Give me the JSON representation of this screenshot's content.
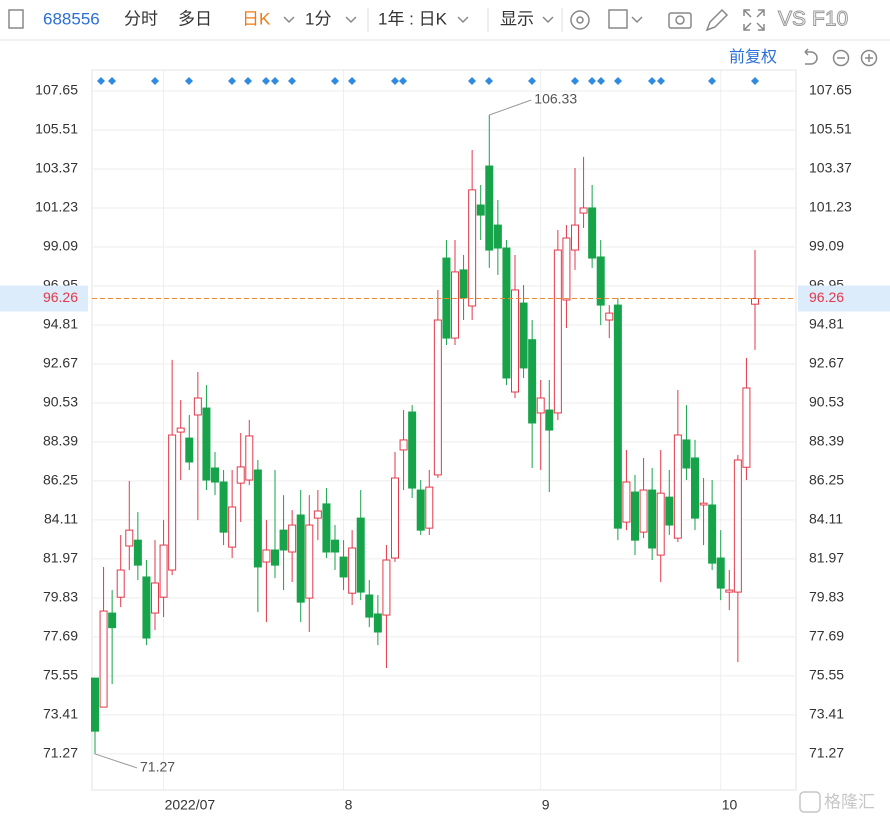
{
  "toolbar": {
    "code": "688556",
    "tabs": [
      "分时",
      "多日",
      "日K",
      "1分"
    ],
    "period": "1年 : 日K",
    "display": "显示",
    "vs": "VS",
    "f10": "F10",
    "adjust": "前复权"
  },
  "chart_data": {
    "type": "candlestick",
    "x": [
      null,
      null,
      null,
      null,
      null,
      null,
      null,
      null,
      "2022/07",
      null,
      null,
      null,
      null,
      null,
      null,
      null,
      null,
      null,
      null,
      null,
      null,
      null,
      null,
      null,
      null,
      null,
      null,
      null,
      null,
      "8",
      null,
      null,
      null,
      null,
      null,
      null,
      null,
      null,
      null,
      null,
      null,
      null,
      null,
      null,
      null,
      null,
      null,
      null,
      null,
      null,
      null,
      null,
      "9",
      null,
      null,
      null,
      null,
      null,
      null,
      null,
      null,
      null,
      null,
      null,
      null,
      null,
      null,
      null,
      null,
      null,
      null,
      null,
      null,
      "10",
      null,
      null,
      null,
      null
    ],
    "open": [
      75.43,
      73.84,
      79.0,
      79.87,
      82.68,
      83.0,
      80.98,
      79.0,
      79.87,
      81.36,
      88.93,
      88.6,
      89.87,
      90.25,
      86.96,
      86.19,
      82.62,
      86.13,
      86.3,
      86.85,
      81.8,
      82.46,
      83.55,
      82.35,
      84.38,
      79.82,
      84.21,
      84.99,
      83.0,
      82.07,
      80.09,
      84.21,
      79.99,
      78.95,
      78.89,
      82.02,
      87.95,
      90.03,
      85.75,
      83.66,
      86.58,
      98.48,
      94.09,
      97.83,
      95.85,
      101.39,
      103.53,
      100.29,
      99.03,
      91.13,
      96.01,
      94.0,
      89.98,
      90.14,
      89.98,
      96.18,
      98.92,
      100.95,
      101.23,
      98.54,
      95.08,
      95.9,
      83.99,
      85.64,
      83.44,
      85.75,
      82.18,
      85.36,
      83.11,
      88.5,
      87.51,
      84.93,
      84.93,
      82.02,
      80.15,
      80.15,
      87.0,
      95.95
    ],
    "high": [
      75.43,
      81.53,
      80.26,
      83.28,
      86.25,
      84.54,
      81.91,
      83.0,
      84.1,
      92.89,
      90.69,
      89.87,
      92.23,
      91.51,
      87.84,
      86.85,
      86.85,
      88.88,
      89.6,
      87.4,
      84.1,
      86.85,
      85.47,
      84.65,
      85.75,
      85.47,
      85.75,
      85.86,
      83.83,
      83.0,
      83.55,
      85.75,
      80.81,
      79.99,
      82.73,
      87.84,
      90.14,
      90.41,
      86.3,
      86.85,
      96.73,
      99.47,
      99.47,
      98.65,
      104.41,
      102.49,
      106.33,
      101.67,
      99.47,
      98.65,
      97.0,
      95.08,
      91.79,
      91.79,
      100.02,
      100.29,
      103.42,
      104.03,
      102.49,
      99.47,
      95.9,
      96.29,
      87.95,
      86.58,
      87.51,
      86.96,
      87.95,
      86.85,
      91.24,
      90.41,
      88.5,
      86.41,
      86.3,
      83.55,
      81.36,
      87.68,
      93.0,
      98.92
    ],
    "low": [
      71.27,
      73.84,
      75.1,
      79.33,
      81.36,
      80.81,
      77.24,
      78.07,
      78.78,
      81.08,
      86.3,
      86.85,
      84.1,
      85.75,
      85.47,
      82.73,
      82.02,
      84.0,
      86.02,
      79.05,
      78.5,
      80.92,
      80.26,
      80.7,
      78.5,
      77.96,
      83.0,
      82.02,
      81.36,
      80.26,
      79.44,
      79.71,
      78.23,
      77.24,
      75.98,
      81.8,
      85.75,
      85.31,
      83.28,
      83.28,
      86.41,
      93.71,
      93.71,
      95.08,
      95.08,
      99.47,
      97.94,
      97.55,
      91.51,
      90.8,
      91.9,
      86.96,
      86.85,
      85.64,
      89.59,
      94.64,
      97.83,
      100.13,
      97.94,
      94.8,
      94.09,
      83.0,
      83.55,
      82.18,
      83.11,
      81.91,
      80.7,
      83.28,
      82.9,
      86.3,
      83.55,
      82.73,
      81.36,
      79.71,
      79.16,
      76.31,
      86.3,
      93.44
    ],
    "close": [
      72.52,
      79.11,
      78.2,
      81.36,
      83.55,
      81.63,
      77.63,
      80.65,
      82.73,
      88.77,
      89.15,
      87.29,
      90.8,
      86.3,
      86.19,
      83.44,
      84.82,
      87.02,
      88.72,
      81.53,
      82.46,
      81.63,
      82.46,
      83.83,
      79.6,
      83.83,
      84.6,
      82.35,
      82.35,
      80.98,
      82.57,
      80.15,
      78.78,
      77.96,
      81.91,
      86.41,
      88.5,
      85.86,
      83.55,
      85.91,
      95.08,
      94.09,
      97.72,
      96.29,
      102.22,
      100.84,
      98.92,
      99.03,
      91.9,
      96.73,
      92.45,
      89.43,
      90.8,
      89.04,
      98.92,
      99.58,
      100.29,
      101.23,
      98.48,
      95.9,
      95.46,
      83.66,
      86.19,
      83.0,
      85.75,
      82.57,
      85.58,
      83.83,
      88.77,
      86.96,
      84.21,
      85.03,
      81.74,
      80.37,
      80.26,
      87.4,
      91.35,
      96.26
    ],
    "up_color": "#e3394a",
    "down_color": "#16a34a",
    "ylim": [
      69.29,
      108.8
    ],
    "yticks": [
      107.65,
      105.51,
      103.37,
      101.23,
      99.09,
      96.95,
      94.81,
      92.67,
      90.53,
      88.39,
      86.25,
      84.11,
      81.97,
      79.83,
      77.69,
      75.55,
      73.41,
      71.27
    ],
    "grid": true
  },
  "watermark": "格隆汇"
}
